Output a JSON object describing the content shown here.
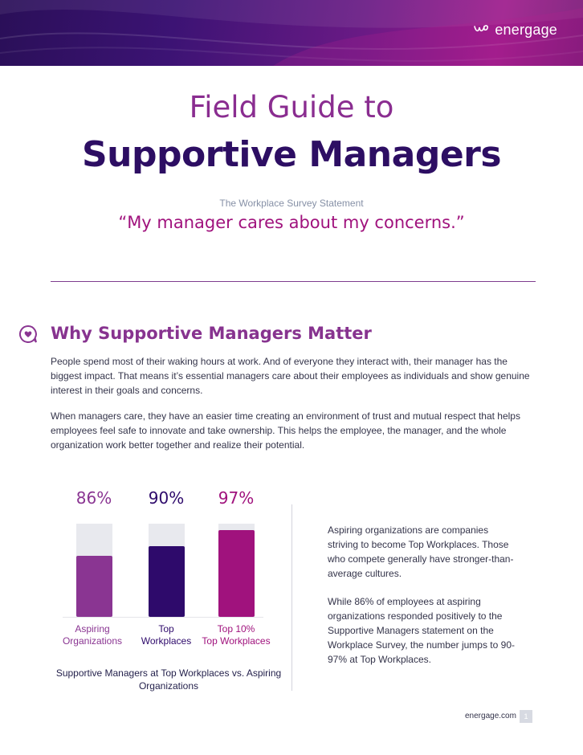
{
  "brand": {
    "logo_text": "energage"
  },
  "header": {
    "kicker": "Field Guide to",
    "title": "Supportive Managers",
    "statement_label": "The Workplace Survey Statement",
    "statement_quote": "“My manager cares about my concerns.”"
  },
  "section": {
    "icon": "heart-speech-bubble-icon",
    "title": "Why Supportive Managers Matter",
    "paragraphs": [
      "People spend most of their waking hours at work. And of everyone they interact with, their manager has the biggest impact. That means it’s essential managers care about their employees as individuals and show genuine interest in their goals and concerns.",
      "When managers care, they have an easier time creating an environment of trust and mutual respect that helps employees feel safe to innovate and take ownership. This helps the employee, the manager, and the whole organization work better together and realize their potential."
    ]
  },
  "chart_data": {
    "type": "bar",
    "caption": "Supportive Managers at Top Workplaces vs. Aspiring Organizations",
    "categories": [
      "Aspiring Organizations",
      "Top Workplaces",
      "Top 10% Top Workplaces"
    ],
    "value_labels": [
      "86%",
      "90%",
      "97%"
    ],
    "values": [
      86,
      90,
      97
    ],
    "colors": [
      "#8a3592",
      "#2e0a6b",
      "#a0127d"
    ],
    "grid": false,
    "legend": "none"
  },
  "sidebar": {
    "paragraphs": [
      "Aspiring organizations are companies striving to become Top Workplaces. Those who compete generally have stronger-than-average cultures.",
      "While 86% of employees at aspiring organizations responded positively to the Supportive Managers statement on the Workplace Survey, the number jumps to 90-97% at Top Workplaces."
    ]
  },
  "footer": {
    "site": "energage.com",
    "page": "1"
  }
}
